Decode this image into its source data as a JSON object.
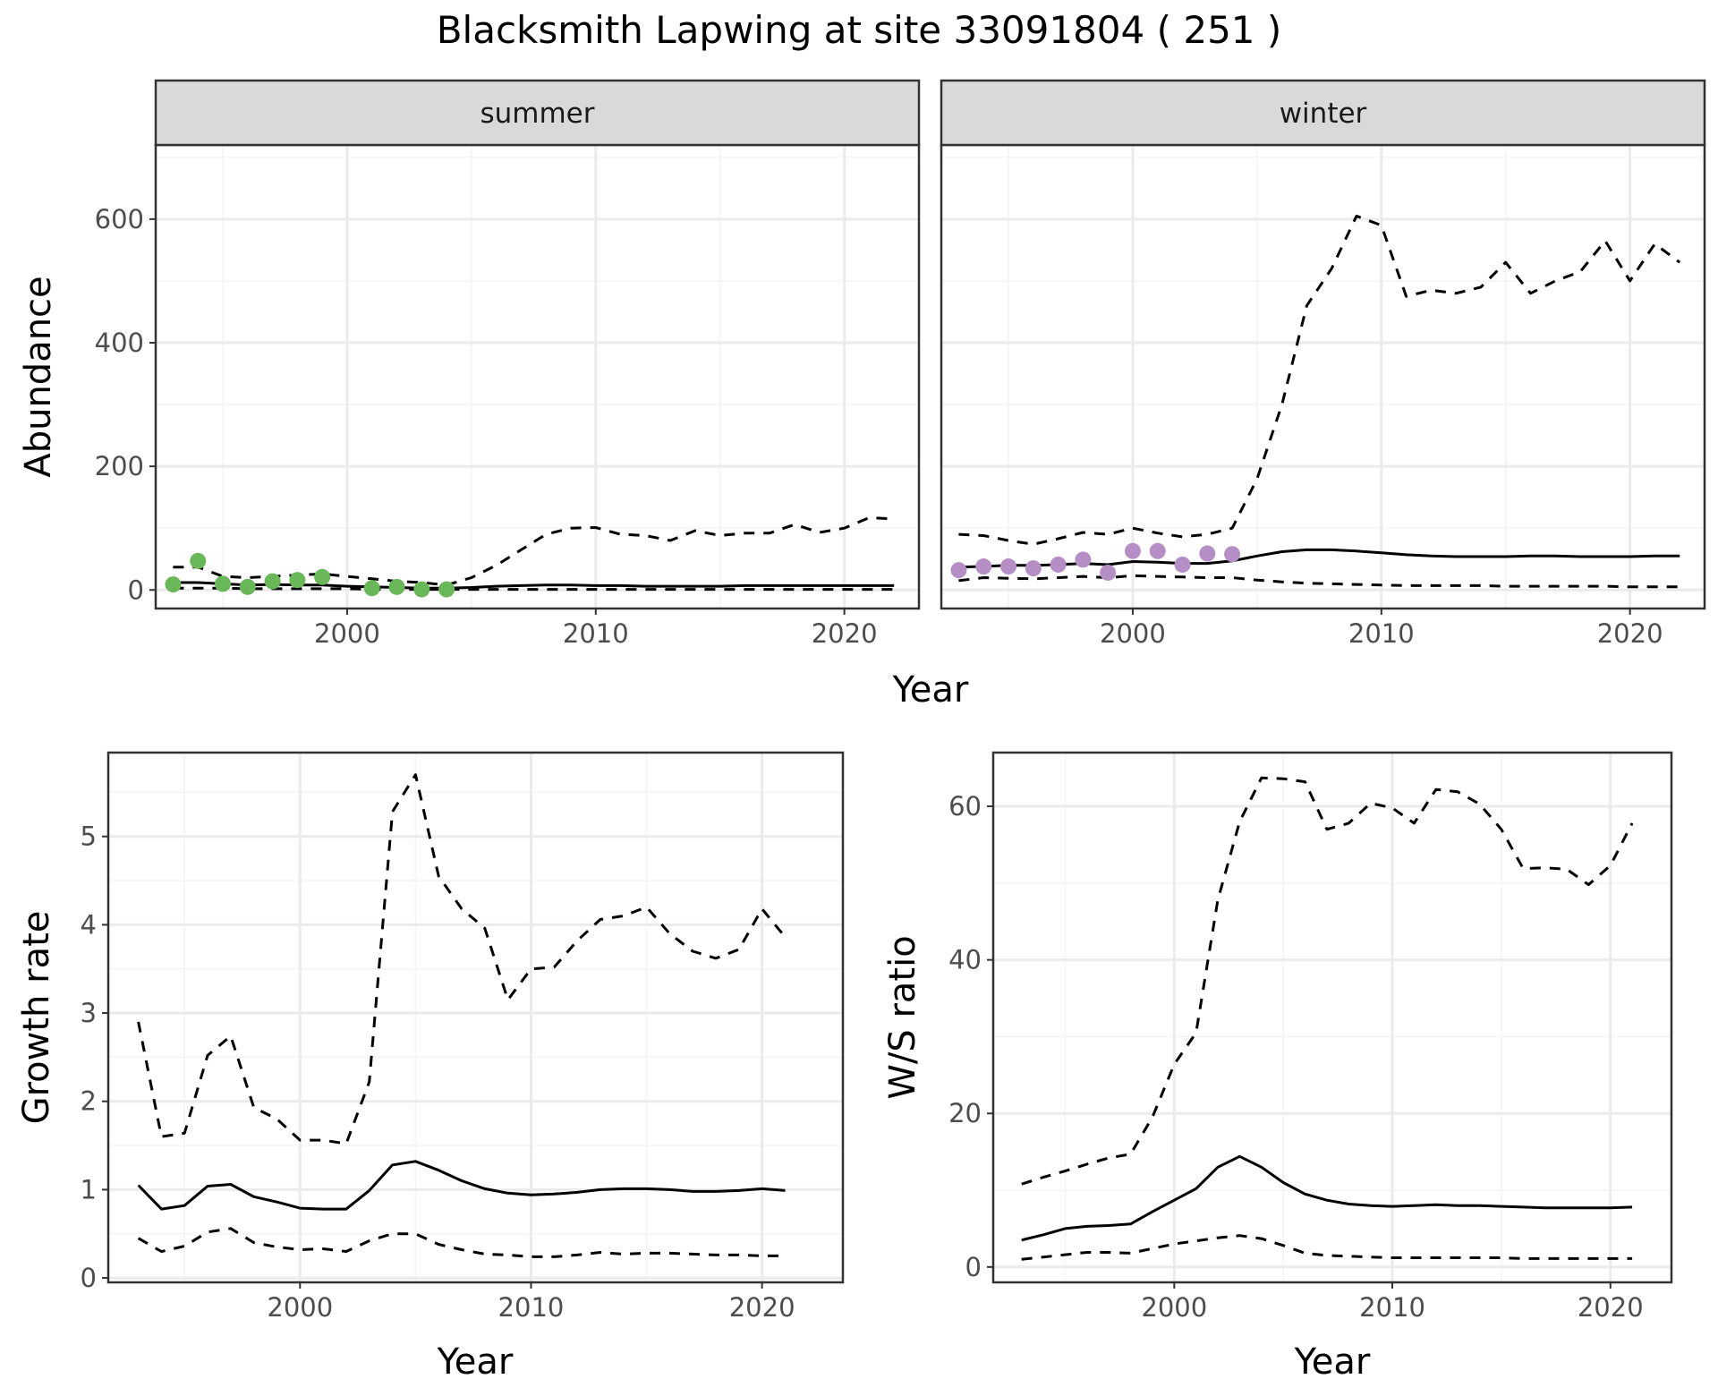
{
  "title": "Blacksmith Lapwing at site 33091804 ( 251 )",
  "colors": {
    "summer_points": "#6ab759",
    "winter_points": "#b48ec5",
    "strip_fill": "#d9d9d9",
    "grid_major": "#ebebeb",
    "grid_minor": "#f4f4f4",
    "line": "#000000"
  },
  "chart_data": [
    {
      "id": "abundance",
      "type": "line",
      "facets": [
        "summer",
        "winter"
      ],
      "xlabel": "Year",
      "ylabel": "Abundance",
      "xlim": [
        1992.3,
        2023.0
      ],
      "ylim": [
        -30,
        720
      ],
      "xticks": [
        2000,
        2010,
        2020
      ],
      "yticks": [
        0,
        200,
        400,
        600
      ],
      "grid": true,
      "panels": [
        {
          "name": "summer",
          "points": {
            "x": [
              1993,
              1994,
              1995,
              1996,
              1997,
              1998,
              1999,
              2001,
              2002,
              2003,
              2004
            ],
            "y": [
              9,
              47,
              10,
              5,
              14,
              16,
              21,
              3,
              5,
              1,
              1
            ]
          },
          "series": [
            {
              "role": "estimate",
              "style": "solid",
              "x": [
                1993,
                1994,
                1995,
                1996,
                1997,
                1998,
                1999,
                2000,
                2001,
                2002,
                2003,
                2004,
                2005,
                2006,
                2007,
                2008,
                2009,
                2010,
                2011,
                2012,
                2013,
                2014,
                2015,
                2016,
                2017,
                2018,
                2019,
                2020,
                2021,
                2022
              ],
              "y": [
                12,
                12,
                10,
                8,
                9,
                8,
                8,
                6,
                5,
                4,
                3,
                3,
                4,
                6,
                7,
                8,
                8,
                7,
                7,
                6,
                6,
                6,
                6,
                7,
                7,
                7,
                7,
                7,
                7,
                7
              ]
            },
            {
              "role": "upper",
              "style": "dashed",
              "x": [
                1993,
                1994,
                1995,
                1996,
                1997,
                1998,
                1999,
                2000,
                2001,
                2002,
                2003,
                2004,
                2005,
                2006,
                2007,
                2008,
                2009,
                2010,
                2011,
                2012,
                2013,
                2014,
                2015,
                2016,
                2017,
                2018,
                2019,
                2020,
                2021,
                2022
              ],
              "y": [
                37,
                37,
                22,
                20,
                22,
                24,
                26,
                22,
                18,
                14,
                12,
                8,
                20,
                40,
                65,
                90,
                100,
                101,
                90,
                88,
                80,
                96,
                88,
                92,
                92,
                106,
                93,
                100,
                117,
                115
              ]
            },
            {
              "role": "lower",
              "style": "dashed",
              "x": [
                1993,
                1994,
                1995,
                1996,
                1997,
                1998,
                1999,
                2000,
                2001,
                2002,
                2003,
                2004,
                2005,
                2006,
                2007,
                2008,
                2009,
                2010,
                2011,
                2012,
                2013,
                2014,
                2015,
                2016,
                2017,
                2018,
                2019,
                2020,
                2021,
                2022
              ],
              "y": [
                3,
                3,
                3,
                2,
                2,
                2,
                2,
                2,
                1,
                1,
                1,
                1,
                1,
                1,
                1,
                1,
                1,
                1,
                1,
                1,
                1,
                1,
                1,
                1,
                1,
                1,
                1,
                1,
                1,
                1
              ]
            }
          ]
        },
        {
          "name": "winter",
          "points": {
            "x": [
              1993,
              1994,
              1995,
              1996,
              1997,
              1998,
              1999,
              2000,
              2001,
              2002,
              2003,
              2004
            ],
            "y": [
              32,
              38,
              38,
              35,
              41,
              49,
              28,
              63,
              63,
              41,
              59,
              58
            ]
          },
          "series": [
            {
              "role": "estimate",
              "style": "solid",
              "x": [
                1993,
                1994,
                1995,
                1996,
                1997,
                1998,
                1999,
                2000,
                2001,
                2002,
                2003,
                2004,
                2005,
                2006,
                2007,
                2008,
                2009,
                2010,
                2011,
                2012,
                2013,
                2014,
                2015,
                2016,
                2017,
                2018,
                2019,
                2020,
                2021,
                2022
              ],
              "y": [
                37,
                38,
                40,
                40,
                41,
                43,
                41,
                46,
                45,
                43,
                43,
                47,
                55,
                62,
                65,
                65,
                63,
                60,
                57,
                55,
                54,
                54,
                54,
                55,
                55,
                54,
                54,
                54,
                55,
                55
              ]
            },
            {
              "role": "upper",
              "style": "dashed",
              "x": [
                1993,
                1994,
                1995,
                1996,
                1997,
                1998,
                1999,
                2000,
                2001,
                2002,
                2003,
                2004,
                2005,
                2006,
                2007,
                2008,
                2009,
                2010,
                2011,
                2012,
                2013,
                2014,
                2015,
                2016,
                2017,
                2018,
                2019,
                2020,
                2021,
                2022
              ],
              "y": [
                90,
                88,
                80,
                74,
                83,
                93,
                90,
                100,
                92,
                86,
                90,
                100,
                180,
                300,
                460,
                520,
                605,
                590,
                475,
                485,
                480,
                490,
                530,
                480,
                500,
                515,
                565,
                500,
                560,
                530
              ]
            },
            {
              "role": "lower",
              "style": "dashed",
              "x": [
                1993,
                1994,
                1995,
                1996,
                1997,
                1998,
                1999,
                2000,
                2001,
                2002,
                2003,
                2004,
                2005,
                2006,
                2007,
                2008,
                2009,
                2010,
                2011,
                2012,
                2013,
                2014,
                2015,
                2016,
                2017,
                2018,
                2019,
                2020,
                2021,
                2022
              ],
              "y": [
                15,
                20,
                19,
                18,
                20,
                22,
                20,
                23,
                22,
                21,
                20,
                20,
                16,
                13,
                11,
                10,
                9,
                8,
                7,
                7,
                7,
                7,
                6,
                6,
                6,
                6,
                6,
                5,
                5,
                5
              ]
            }
          ]
        }
      ]
    },
    {
      "id": "growth",
      "type": "line",
      "xlabel": "Year",
      "ylabel": "Growth rate",
      "xlim": [
        1991.7,
        2023.5
      ],
      "ylim": [
        -0.05,
        5.95
      ],
      "xticks": [
        2000,
        2010,
        2020
      ],
      "yticks": [
        0,
        1,
        2,
        3,
        4,
        5
      ],
      "grid": true,
      "series": [
        {
          "role": "estimate",
          "style": "solid",
          "x": [
            1993,
            1994,
            1995,
            1996,
            1997,
            1998,
            1999,
            2000,
            2001,
            2002,
            2003,
            2004,
            2005,
            2006,
            2007,
            2008,
            2009,
            2010,
            2011,
            2012,
            2013,
            2014,
            2015,
            2016,
            2017,
            2018,
            2019,
            2020,
            2021
          ],
          "y": [
            1.05,
            0.78,
            0.82,
            1.04,
            1.06,
            0.92,
            0.86,
            0.79,
            0.78,
            0.78,
            0.99,
            1.28,
            1.32,
            1.22,
            1.1,
            1.01,
            0.96,
            0.94,
            0.95,
            0.97,
            1.0,
            1.01,
            1.01,
            1.0,
            0.98,
            0.98,
            0.99,
            1.01,
            0.99
          ]
        },
        {
          "role": "upper",
          "style": "dashed",
          "x": [
            1993,
            1994,
            1995,
            1996,
            1997,
            1998,
            1999,
            2000,
            2001,
            2002,
            2003,
            2004,
            2005,
            2006,
            2007,
            2008,
            2009,
            2010,
            2011,
            2012,
            2013,
            2014,
            2015,
            2016,
            2017,
            2018,
            2019,
            2020,
            2021
          ],
          "y": [
            2.9,
            1.6,
            1.64,
            2.52,
            2.74,
            1.93,
            1.8,
            1.56,
            1.56,
            1.52,
            2.22,
            5.28,
            5.7,
            4.55,
            4.18,
            3.96,
            3.15,
            3.5,
            3.52,
            3.82,
            4.06,
            4.1,
            4.2,
            3.9,
            3.7,
            3.62,
            3.72,
            4.18,
            3.86
          ]
        },
        {
          "role": "lower",
          "style": "dashed",
          "x": [
            1993,
            1994,
            1995,
            1996,
            1997,
            1998,
            1999,
            2000,
            2001,
            2002,
            2003,
            2004,
            2005,
            2006,
            2007,
            2008,
            2009,
            2010,
            2011,
            2012,
            2013,
            2014,
            2015,
            2016,
            2017,
            2018,
            2019,
            2020,
            2021
          ],
          "y": [
            0.45,
            0.3,
            0.36,
            0.52,
            0.56,
            0.4,
            0.35,
            0.32,
            0.33,
            0.3,
            0.42,
            0.5,
            0.5,
            0.38,
            0.32,
            0.27,
            0.26,
            0.24,
            0.24,
            0.26,
            0.29,
            0.27,
            0.28,
            0.28,
            0.27,
            0.26,
            0.26,
            0.25,
            0.25
          ]
        }
      ]
    },
    {
      "id": "ratio",
      "type": "line",
      "xlabel": "Year",
      "ylabel": "W/S ratio",
      "xlim": [
        1991.7,
        2022.8
      ],
      "ylim": [
        -2,
        67
      ],
      "xticks": [
        2000,
        2010,
        2020
      ],
      "yticks": [
        0,
        20,
        40,
        60
      ],
      "grid": true,
      "series": [
        {
          "role": "estimate",
          "style": "solid",
          "x": [
            1993,
            1994,
            1995,
            1996,
            1997,
            1998,
            1999,
            2000,
            2001,
            2002,
            2003,
            2004,
            2005,
            2006,
            2007,
            2008,
            2009,
            2010,
            2011,
            2012,
            2013,
            2014,
            2015,
            2016,
            2017,
            2018,
            2019,
            2020,
            2021
          ],
          "y": [
            3.5,
            4.2,
            5.0,
            5.3,
            5.4,
            5.6,
            7.2,
            8.7,
            10.2,
            13.0,
            14.4,
            13.0,
            11.0,
            9.5,
            8.7,
            8.2,
            8.0,
            7.9,
            8.0,
            8.1,
            8.0,
            8.0,
            7.9,
            7.8,
            7.7,
            7.7,
            7.7,
            7.7,
            7.8
          ]
        },
        {
          "role": "upper",
          "style": "dashed",
          "x": [
            1993,
            1994,
            1995,
            1996,
            1997,
            1998,
            1999,
            2000,
            2001,
            2002,
            2003,
            2004,
            2005,
            2006,
            2007,
            2008,
            2009,
            2010,
            2011,
            2012,
            2013,
            2014,
            2015,
            2016,
            2017,
            2018,
            2019,
            2020,
            2021
          ],
          "y": [
            10.8,
            11.7,
            12.5,
            13.4,
            14.2,
            14.7,
            19.5,
            26.4,
            30.5,
            47.8,
            58.0,
            63.7,
            63.6,
            63.2,
            57.0,
            57.8,
            60.4,
            59.8,
            57.8,
            62.2,
            61.9,
            60.3,
            57.0,
            51.9,
            52.0,
            51.8,
            49.8,
            52.3,
            57.8
          ]
        },
        {
          "role": "lower",
          "style": "dashed",
          "x": [
            1993,
            1994,
            1995,
            1996,
            1997,
            1998,
            1999,
            2000,
            2001,
            2002,
            2003,
            2004,
            2005,
            2006,
            2007,
            2008,
            2009,
            2010,
            2011,
            2012,
            2013,
            2014,
            2015,
            2016,
            2017,
            2018,
            2019,
            2020,
            2021
          ],
          "y": [
            1.0,
            1.3,
            1.6,
            1.9,
            1.9,
            1.8,
            2.4,
            3.0,
            3.4,
            3.8,
            4.1,
            3.7,
            2.8,
            1.8,
            1.5,
            1.4,
            1.3,
            1.2,
            1.2,
            1.2,
            1.2,
            1.2,
            1.2,
            1.1,
            1.1,
            1.1,
            1.1,
            1.1,
            1.1
          ]
        }
      ]
    }
  ]
}
